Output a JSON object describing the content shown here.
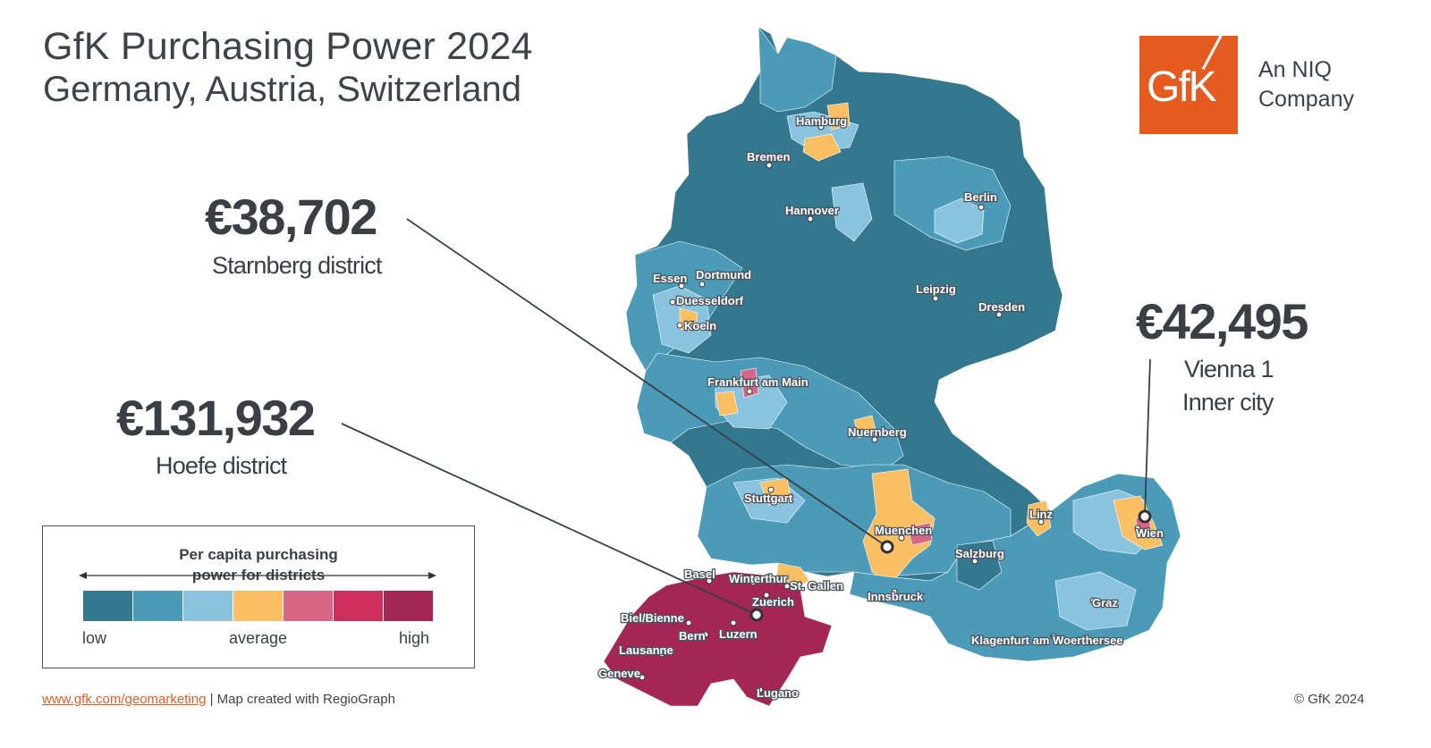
{
  "header": {
    "title": "GfK Purchasing Power 2024",
    "subtitle": "Germany, Austria, Switzerland"
  },
  "logo": {
    "text": "GfK",
    "tagline_line1": "An NIQ",
    "tagline_line2": "Company",
    "color": "#e55a1f"
  },
  "callouts": [
    {
      "value": "€38,702",
      "label_line1": "Starnberg district",
      "label_line2": ""
    },
    {
      "value": "€131,932",
      "label_line1": "Hoefe district",
      "label_line2": ""
    },
    {
      "value": "€42,495",
      "label_line1": "Vienna 1",
      "label_line2": "Inner city"
    }
  ],
  "cities": [
    "Hamburg",
    "Bremen",
    "Berlin",
    "Hannover",
    "Essen",
    "Dortmund",
    "Duesseldorf",
    "Koeln",
    "Leipzig",
    "Dresden",
    "Frankfurt am Main",
    "Nuernberg",
    "Stuttgart",
    "Muenchen",
    "Linz",
    "Wien",
    "Salzburg",
    "Innsbruck",
    "Basel",
    "Winterthur",
    "Zuerich",
    "St. Gallen",
    "Biel/Bienne",
    "Bern",
    "Luzern",
    "Lausanne",
    "Geneve",
    "Lugano",
    "Graz",
    "Klagenfurt am Woerthersee"
  ],
  "legend": {
    "title_line1": "Per capita purchasing",
    "title_line2": "power for districts",
    "low": "low",
    "average": "average",
    "high": "high",
    "colors": [
      "#33788f",
      "#4b9ab8",
      "#8ac3dd",
      "#fbbf63",
      "#d86687",
      "#cf2f5d",
      "#a32655"
    ]
  },
  "colors": {
    "dark_blue": "#33788f",
    "mid_blue": "#4b9ab8",
    "light_blue": "#8ac3dd",
    "orange": "#fbbf63",
    "pink": "#d86687",
    "switzerland": "#a32655"
  },
  "footer": {
    "link": "www.gfk.com/geomarketing",
    "separator": " | ",
    "text": "Map created with RegioGraph",
    "copyright": "© GfK 2024"
  }
}
